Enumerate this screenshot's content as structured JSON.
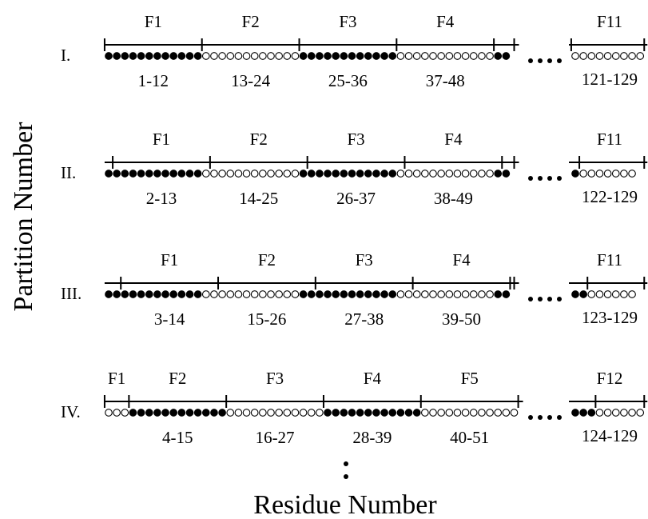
{
  "ylabel": "Partition Number",
  "xlabel": "Residue Number",
  "colors": {
    "filled": "#000000",
    "open": "#ffffff",
    "line": "#000000"
  },
  "rows": [
    {
      "label": "I.",
      "fragments": [
        {
          "name": "F1",
          "range": "1-12"
        },
        {
          "name": "F2",
          "range": "13-24"
        },
        {
          "name": "F3",
          "range": "25-36"
        },
        {
          "name": "F4",
          "range": "37-48"
        }
      ],
      "tail": {
        "name": "F11",
        "range": "121-129"
      }
    },
    {
      "label": "II.",
      "fragments": [
        {
          "name": "F1",
          "range": "2-13"
        },
        {
          "name": "F2",
          "range": "14-25"
        },
        {
          "name": "F3",
          "range": "26-37"
        },
        {
          "name": "F4",
          "range": "38-49"
        }
      ],
      "tail": {
        "name": "F11",
        "range": "122-129"
      }
    },
    {
      "label": "III.",
      "fragments": [
        {
          "name": "F1",
          "range": "3-14"
        },
        {
          "name": "F2",
          "range": "15-26"
        },
        {
          "name": "F3",
          "range": "27-38"
        },
        {
          "name": "F4",
          "range": "39-50"
        }
      ],
      "tail": {
        "name": "F11",
        "range": "123-129"
      }
    },
    {
      "label": "IV.",
      "fragments": [
        {
          "name": "F1",
          "range": ""
        },
        {
          "name": "F2",
          "range": "4-15"
        },
        {
          "name": "F3",
          "range": "16-27"
        },
        {
          "name": "F4",
          "range": "28-39"
        },
        {
          "name": "F5",
          "range": "40-51"
        }
      ],
      "tail": {
        "name": "F12",
        "range": "124-129"
      }
    }
  ]
}
